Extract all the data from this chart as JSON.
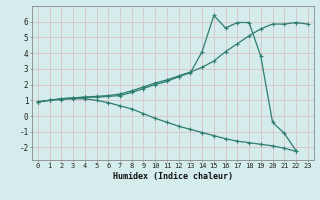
{
  "xlabel": "Humidex (Indice chaleur)",
  "bg_color": "#d4edec",
  "grid_color": "#c8dedc",
  "line_color": "#2e7d6e",
  "line1_x": [
    0,
    1,
    2,
    3,
    4,
    5,
    6,
    7,
    8,
    9,
    10,
    11,
    12,
    13,
    14,
    15,
    16,
    17,
    18,
    19,
    20,
    21,
    22,
    23
  ],
  "line1_y": [
    0.9,
    1.0,
    1.1,
    1.15,
    1.2,
    1.25,
    1.3,
    1.4,
    1.6,
    1.85,
    2.1,
    2.3,
    2.55,
    2.8,
    3.1,
    3.5,
    4.1,
    4.6,
    5.1,
    5.55,
    5.85,
    5.85,
    5.95,
    5.85
  ],
  "line2_x": [
    0,
    1,
    2,
    3,
    4,
    5,
    6,
    7,
    8,
    9,
    10,
    11,
    12,
    13,
    14,
    15,
    16,
    17,
    18,
    19,
    20,
    21,
    22
  ],
  "line2_y": [
    0.9,
    1.0,
    1.1,
    1.15,
    1.2,
    1.2,
    1.25,
    1.3,
    1.5,
    1.75,
    2.0,
    2.2,
    2.5,
    2.75,
    4.1,
    6.4,
    5.6,
    5.95,
    5.95,
    3.8,
    -0.4,
    -1.1,
    -2.2
  ],
  "line3_x": [
    0,
    1,
    2,
    3,
    4,
    5,
    6,
    7,
    8,
    9,
    10,
    11,
    12,
    13,
    14,
    15,
    16,
    17,
    18,
    19,
    20,
    21,
    22
  ],
  "line3_y": [
    0.9,
    1.0,
    1.05,
    1.1,
    1.1,
    1.0,
    0.85,
    0.65,
    0.45,
    0.15,
    -0.15,
    -0.4,
    -0.65,
    -0.85,
    -1.05,
    -1.25,
    -1.45,
    -1.6,
    -1.7,
    -1.8,
    -1.9,
    -2.05,
    -2.25
  ],
  "ylim": [
    -2.8,
    7.0
  ],
  "xlim": [
    -0.5,
    23.5
  ],
  "yticks": [
    -2,
    -1,
    0,
    1,
    2,
    3,
    4,
    5,
    6
  ],
  "xticks": [
    0,
    1,
    2,
    3,
    4,
    5,
    6,
    7,
    8,
    9,
    10,
    11,
    12,
    13,
    14,
    15,
    16,
    17,
    18,
    19,
    20,
    21,
    22,
    23
  ],
  "markersize": 3.5,
  "linewidth": 0.9,
  "tick_fontsize_x": 5.0,
  "tick_fontsize_y": 5.5,
  "xlabel_fontsize": 6.0
}
